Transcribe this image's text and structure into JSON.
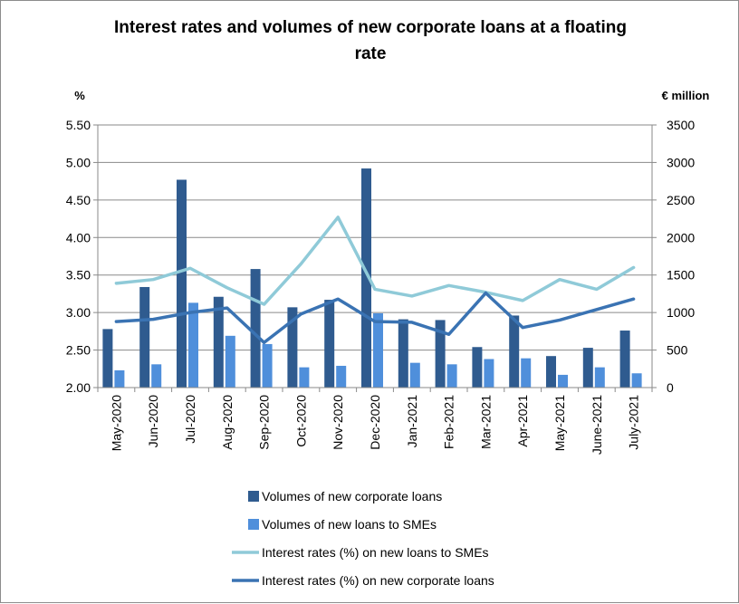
{
  "chart_data": {
    "type": "bar",
    "title_line1": "Interest rates and volumes of new corporate loans at a floating",
    "title_line2": "rate",
    "left_axis_unit": "%",
    "right_axis_unit": "€ million",
    "categories": [
      "May-2020",
      "Jun-2020",
      "Jul-2020",
      "Aug-2020",
      "Sep-2020",
      "Oct-2020",
      "Nov-2020",
      "Dec-2020",
      "Jan-2021",
      "Feb-2021",
      "Mar-2021",
      "Apr-2021",
      "May-2021",
      "June-2021",
      "July-2021"
    ],
    "y_left": {
      "min": 2.0,
      "max": 5.5,
      "ticks": [
        "2.00",
        "2.50",
        "3.00",
        "3.50",
        "4.00",
        "4.50",
        "5.00",
        "5.50"
      ]
    },
    "y_right": {
      "min": 0,
      "max": 3500,
      "ticks": [
        "0",
        "500",
        "1000",
        "1500",
        "2000",
        "2500",
        "3000",
        "3500"
      ]
    },
    "grid": "horizontal",
    "legend_position": "bottom",
    "series": [
      {
        "name": "Volumes of new corporate loans",
        "type": "bar",
        "axis": "right",
        "color": "#2f5b8f",
        "values": [
          780,
          1340,
          2770,
          1210,
          1580,
          1070,
          1170,
          2920,
          910,
          900,
          540,
          960,
          420,
          530,
          760
        ]
      },
      {
        "name": "Volumes of new loans to SMEs",
        "type": "bar",
        "axis": "right",
        "color": "#4f8fdb",
        "values": [
          230,
          310,
          1130,
          690,
          580,
          270,
          290,
          990,
          330,
          310,
          380,
          390,
          170,
          270,
          190
        ]
      },
      {
        "name": "Interest rates (%) on new loans to SMEs",
        "type": "line",
        "axis": "left",
        "color": "#8fcad8",
        "values": [
          3.39,
          3.44,
          3.59,
          3.33,
          3.11,
          3.65,
          4.27,
          3.31,
          3.22,
          3.36,
          3.27,
          3.16,
          3.44,
          3.31,
          3.6
        ]
      },
      {
        "name": "Interest rates (%) on new corporate loans",
        "type": "line",
        "axis": "left",
        "color": "#3a73b3",
        "values": [
          2.88,
          2.91,
          3.0,
          3.06,
          2.6,
          2.98,
          3.18,
          2.88,
          2.87,
          2.71,
          3.26,
          2.8,
          2.9,
          3.04,
          3.18
        ]
      }
    ]
  }
}
